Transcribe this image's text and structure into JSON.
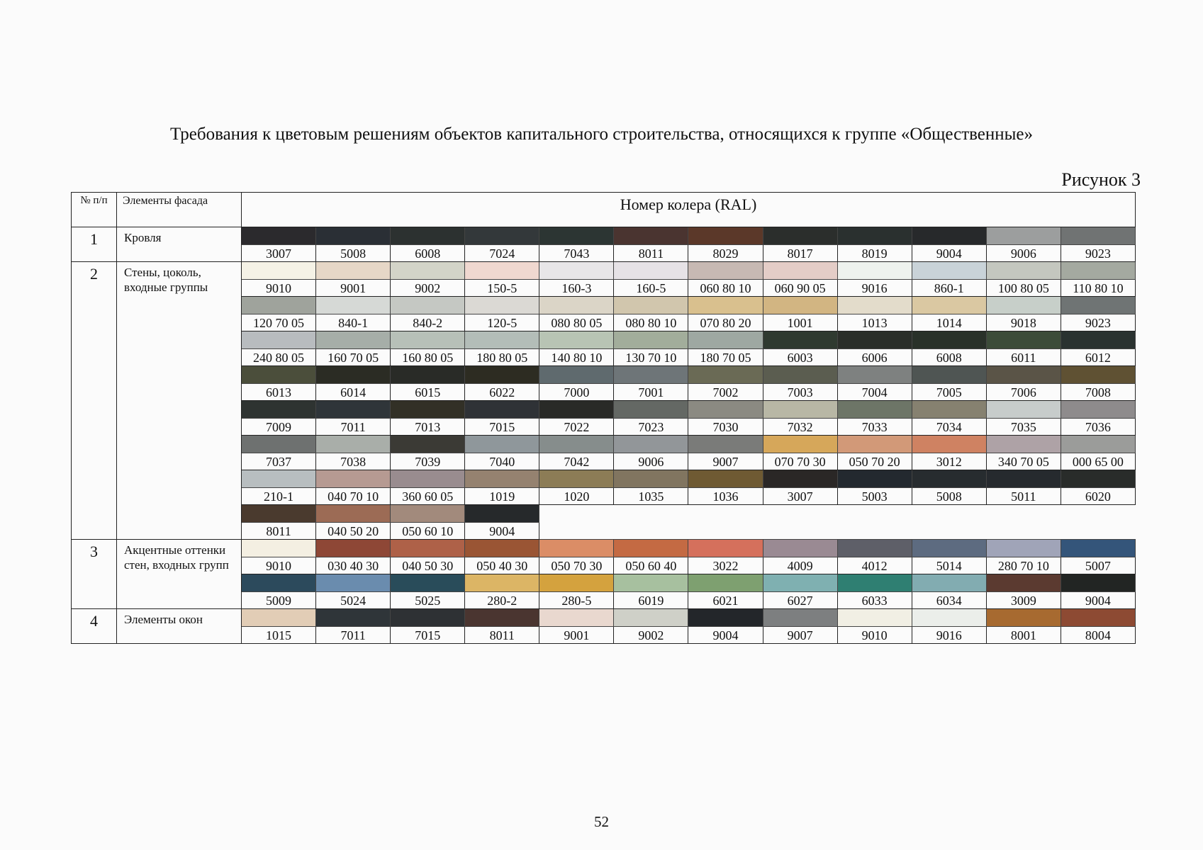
{
  "title": "Требования к цветовым решениям объектов капитального строительства, относящихся к группе «Общественные»",
  "figure_label": "Рисунок 3",
  "page_number": "52",
  "table": {
    "header": {
      "num": "№ п/п",
      "element": "Элементы фасада",
      "ral": "Номер колера (RAL)"
    },
    "groups": [
      {
        "num": "1",
        "label": "Кровля",
        "rows": [
          [
            {
              "code": "3007",
              "color": "#2b2a2d"
            },
            {
              "code": "5008",
              "color": "#2a2f35"
            },
            {
              "code": "6008",
              "color": "#2c3130"
            },
            {
              "code": "7024",
              "color": "#33383a"
            },
            {
              "code": "7043",
              "color": "#2c3533"
            },
            {
              "code": "8011",
              "color": "#4a3430"
            },
            {
              "code": "8029",
              "color": "#5b3829"
            },
            {
              "code": "8017",
              "color": "#2b2e2c"
            },
            {
              "code": "8019",
              "color": "#2a302f"
            },
            {
              "code": "9004",
              "color": "#27292b"
            },
            {
              "code": "9006",
              "color": "#9c9e9e"
            },
            {
              "code": "9023",
              "color": "#707373"
            }
          ]
        ]
      },
      {
        "num": "2",
        "label": "Стены, цоколь, входные группы",
        "rows": [
          [
            {
              "code": "9010",
              "color": "#f5f2e6"
            },
            {
              "code": "9001",
              "color": "#e6d7c7"
            },
            {
              "code": "9002",
              "color": "#d3d4c8"
            },
            {
              "code": "150-5",
              "color": "#f0d8d0"
            },
            {
              "code": "160-3",
              "color": "#e8e6e8"
            },
            {
              "code": "160-5",
              "color": "#e6e2e6"
            },
            {
              "code": "060 80 10",
              "color": "#c7b9b3"
            },
            {
              "code": "060 90 05",
              "color": "#e4cdc7"
            },
            {
              "code": "9016",
              "color": "#eef2ee"
            },
            {
              "code": "860-1",
              "color": "#c9d3d8"
            },
            {
              "code": "100 80 05",
              "color": "#c4c7bf"
            },
            {
              "code": "110 80 10",
              "color": "#a4a9a0"
            }
          ],
          [
            {
              "code": "120 70 05",
              "color": "#9fa39c"
            },
            {
              "code": "840-1",
              "color": "#d6d9d6"
            },
            {
              "code": "840-2",
              "color": "#c5c8c3"
            },
            {
              "code": "120-5",
              "color": "#dbd9d4"
            },
            {
              "code": "080 80 05",
              "color": "#dbd5c7"
            },
            {
              "code": "080 80 10",
              "color": "#d1c6ad"
            },
            {
              "code": "070 80 20",
              "color": "#d9c08e"
            },
            {
              "code": "1001",
              "color": "#d2b582"
            },
            {
              "code": "1013",
              "color": "#e3dccb"
            },
            {
              "code": "1014",
              "color": "#dac8a2"
            },
            {
              "code": "9018",
              "color": "#c7cfc9"
            },
            {
              "code": "9023",
              "color": "#6f7474"
            }
          ],
          [
            {
              "code": "240 80 05",
              "color": "#b8bcbf"
            },
            {
              "code": "160 70 05",
              "color": "#a6aea8"
            },
            {
              "code": "160 80 05",
              "color": "#b7c0b8"
            },
            {
              "code": "180 80 05",
              "color": "#b3bdb8"
            },
            {
              "code": "140 80 10",
              "color": "#b8c4b4"
            },
            {
              "code": "130 70 10",
              "color": "#a2ad9b"
            },
            {
              "code": "180 70 05",
              "color": "#9ea8a2"
            },
            {
              "code": "6003",
              "color": "#2f3a30"
            },
            {
              "code": "6006",
              "color": "#2a2e29"
            },
            {
              "code": "6008",
              "color": "#293129"
            },
            {
              "code": "6011",
              "color": "#3c4c39"
            },
            {
              "code": "6012",
              "color": "#2a3230"
            }
          ],
          [
            {
              "code": "6013",
              "color": "#4b4e3b"
            },
            {
              "code": "6014",
              "color": "#2b2c24"
            },
            {
              "code": "6015",
              "color": "#292b27"
            },
            {
              "code": "6022",
              "color": "#2d2c22"
            },
            {
              "code": "7000",
              "color": "#5f6a6e"
            },
            {
              "code": "7001",
              "color": "#6e7578"
            },
            {
              "code": "7002",
              "color": "#6a6a55"
            },
            {
              "code": "7003",
              "color": "#5b5d50"
            },
            {
              "code": "7004",
              "color": "#7e8180"
            },
            {
              "code": "7005",
              "color": "#4f5553"
            },
            {
              "code": "7006",
              "color": "#5a5447"
            },
            {
              "code": "7008",
              "color": "#5f5133"
            }
          ],
          [
            {
              "code": "7009",
              "color": "#2e3331"
            },
            {
              "code": "7011",
              "color": "#2f3539"
            },
            {
              "code": "7013",
              "color": "#323026"
            },
            {
              "code": "7015",
              "color": "#2f3236"
            },
            {
              "code": "7022",
              "color": "#292a27"
            },
            {
              "code": "7023",
              "color": "#646864"
            },
            {
              "code": "7030",
              "color": "#8b8a82"
            },
            {
              "code": "7032",
              "color": "#b8b7a5"
            },
            {
              "code": "7033",
              "color": "#6d7567"
            },
            {
              "code": "7034",
              "color": "#868170"
            },
            {
              "code": "7035",
              "color": "#c7cccb"
            },
            {
              "code": "7036",
              "color": "#8e8b8c"
            }
          ],
          [
            {
              "code": "7037",
              "color": "#6e7170"
            },
            {
              "code": "7038",
              "color": "#a9aea9"
            },
            {
              "code": "7039",
              "color": "#3b3a35"
            },
            {
              "code": "7040",
              "color": "#8f979b"
            },
            {
              "code": "7042",
              "color": "#868d8c"
            },
            {
              "code": "9006",
              "color": "#929699"
            },
            {
              "code": "9007",
              "color": "#7a7b79"
            },
            {
              "code": "070 70 30",
              "color": "#d6a75a"
            },
            {
              "code": "050 70 20",
              "color": "#d29978"
            },
            {
              "code": "3012",
              "color": "#cf8262"
            },
            {
              "code": "340 70 05",
              "color": "#aea2a6"
            },
            {
              "code": "000 65 00",
              "color": "#9b9c9a"
            }
          ],
          [
            {
              "code": "210-1",
              "color": "#b8bec0"
            },
            {
              "code": "040 70 10",
              "color": "#b69a92"
            },
            {
              "code": "360 60 05",
              "color": "#998c8f"
            },
            {
              "code": "1019",
              "color": "#958270"
            },
            {
              "code": "1020",
              "color": "#8c7c56"
            },
            {
              "code": "1035",
              "color": "#817560"
            },
            {
              "code": "1036",
              "color": "#6f5a33"
            },
            {
              "code": "3007",
              "color": "#2a2726"
            },
            {
              "code": "5003",
              "color": "#23292f"
            },
            {
              "code": "5008",
              "color": "#272c2f"
            },
            {
              "code": "5011",
              "color": "#262a2e"
            },
            {
              "code": "6020",
              "color": "#292c2a"
            }
          ],
          [
            {
              "code": "8011",
              "color": "#4a3a2e"
            },
            {
              "code": "040 50 20",
              "color": "#9c6b55"
            },
            {
              "code": "050 60 10",
              "color": "#a28a7c"
            },
            {
              "code": "9004",
              "color": "#26292b"
            }
          ]
        ]
      },
      {
        "num": "3",
        "label": "Акцентные оттенки стен, входных групп",
        "rows": [
          [
            {
              "code": "9010",
              "color": "#f4efe2"
            },
            {
              "code": "030 40 30",
              "color": "#8e4736"
            },
            {
              "code": "040 50 30",
              "color": "#ae6148"
            },
            {
              "code": "050 40 30",
              "color": "#9a5534"
            },
            {
              "code": "050 70 30",
              "color": "#db8d66"
            },
            {
              "code": "050 60 40",
              "color": "#c46a43"
            },
            {
              "code": "3022",
              "color": "#d5705c"
            },
            {
              "code": "4009",
              "color": "#9a8a93"
            },
            {
              "code": "4012",
              "color": "#5e5f68"
            },
            {
              "code": "5014",
              "color": "#5d6b80"
            },
            {
              "code": "280 70 10",
              "color": "#a0a4b8"
            },
            {
              "code": "5007",
              "color": "#34557a"
            }
          ],
          [
            {
              "code": "5009",
              "color": "#2c4a5c"
            },
            {
              "code": "5024",
              "color": "#6a8cae"
            },
            {
              "code": "5025",
              "color": "#294c5a"
            },
            {
              "code": "280-2",
              "color": "#dcb565"
            },
            {
              "code": "280-5",
              "color": "#d4a23e"
            },
            {
              "code": "6019",
              "color": "#a7c09f"
            },
            {
              "code": "6021",
              "color": "#7ea070"
            },
            {
              "code": "6027",
              "color": "#7fb0b1"
            },
            {
              "code": "6033",
              "color": "#2f7f72"
            },
            {
              "code": "6034",
              "color": "#82acb1"
            },
            {
              "code": "3009",
              "color": "#5b3a30"
            },
            {
              "code": "9004",
              "color": "#222523"
            }
          ]
        ]
      },
      {
        "num": "4",
        "label": "Элементы окон",
        "rows": [
          [
            {
              "code": "1015",
              "color": "#e2cdb6"
            },
            {
              "code": "7011",
              "color": "#2f3539"
            },
            {
              "code": "7015",
              "color": "#2e3134"
            },
            {
              "code": "8011",
              "color": "#4a3530"
            },
            {
              "code": "9001",
              "color": "#e9d8cf"
            },
            {
              "code": "9002",
              "color": "#cfd0c8"
            },
            {
              "code": "9004",
              "color": "#23262a"
            },
            {
              "code": "9007",
              "color": "#7d7f80"
            },
            {
              "code": "9010",
              "color": "#f1efe4"
            },
            {
              "code": "9016",
              "color": "#ebeeea"
            },
            {
              "code": "8001",
              "color": "#a76a30"
            },
            {
              "code": "8004",
              "color": "#8d4a33"
            }
          ]
        ]
      }
    ]
  }
}
